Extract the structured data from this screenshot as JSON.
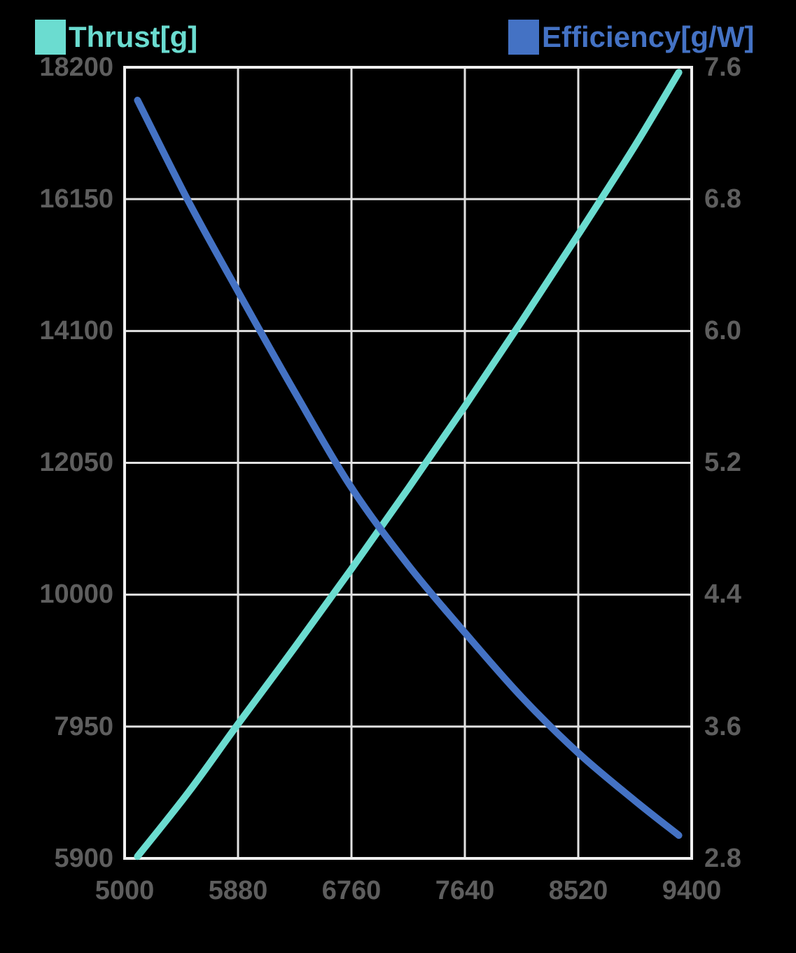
{
  "legend": {
    "thrust_label": "Thrust[g]",
    "efficiency_label": "Efficiency[g/W]"
  },
  "colors": {
    "background": "#000000",
    "grid_line": "#E2E2E2",
    "plot_border": "#F0F0F0",
    "tick_text": "#5E5E5E",
    "thrust_series": "#6BDCD0",
    "efficiency_series": "#4472C4"
  },
  "chart_data": {
    "type": "line",
    "title": "",
    "grid": true,
    "legend_position": "top",
    "x_axis": {
      "label": "",
      "min": 5000,
      "max": 9400,
      "ticks": [
        5000,
        5880,
        6760,
        7640,
        8520,
        9400
      ]
    },
    "y_left": {
      "label": "Thrust[g]",
      "min": 5900,
      "max": 18200,
      "ticks": [
        18200,
        16150,
        14100,
        12050,
        10000,
        7950,
        5900
      ]
    },
    "y_right": {
      "label": "Efficiency[g/W]",
      "min": 2.8,
      "max": 7.6,
      "ticks": [
        "7.6",
        "6.8",
        "6.0",
        "5.2",
        "4.4",
        "3.6",
        "2.8"
      ]
    },
    "series": [
      {
        "name": "Thrust[g]",
        "axis": "left",
        "color": "#6BDCD0",
        "points": [
          [
            5100,
            5930
          ],
          [
            5500,
            6940
          ],
          [
            5880,
            7990
          ],
          [
            6320,
            9180
          ],
          [
            6760,
            10400
          ],
          [
            7200,
            11650
          ],
          [
            7640,
            12930
          ],
          [
            8080,
            14250
          ],
          [
            8520,
            15600
          ],
          [
            8960,
            16980
          ],
          [
            9300,
            18120
          ]
        ]
      },
      {
        "name": "Efficiency[g/W]",
        "axis": "right",
        "color": "#4472C4",
        "points": [
          [
            5100,
            7.4
          ],
          [
            5500,
            6.78
          ],
          [
            5880,
            6.24
          ],
          [
            6320,
            5.63
          ],
          [
            6760,
            5.05
          ],
          [
            7200,
            4.58
          ],
          [
            7640,
            4.17
          ],
          [
            8080,
            3.78
          ],
          [
            8520,
            3.44
          ],
          [
            8960,
            3.15
          ],
          [
            9300,
            2.94
          ]
        ]
      }
    ]
  }
}
